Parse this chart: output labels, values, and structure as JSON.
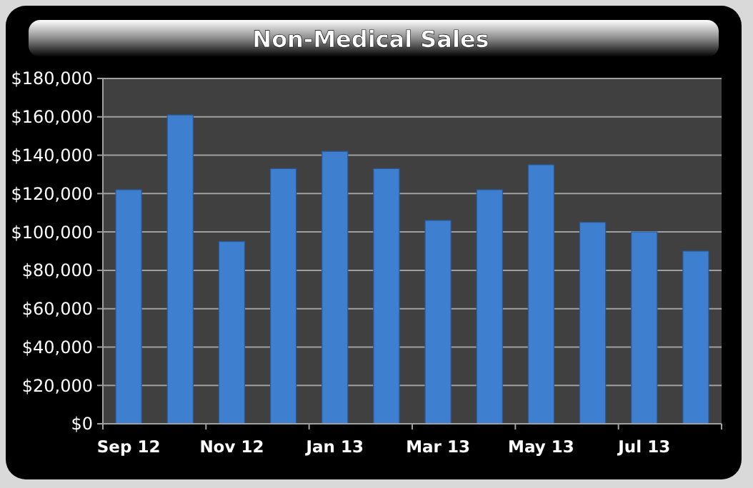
{
  "chart_data": {
    "type": "bar",
    "title": "Non-Medical Sales",
    "categories": [
      "Sep 12",
      null,
      "Nov 12",
      null,
      "Jan 13",
      null,
      "Mar 13",
      null,
      "May 13",
      null,
      "Jul 13",
      null
    ],
    "values": [
      122000,
      161000,
      95000,
      133000,
      142000,
      133000,
      106000,
      122000,
      135000,
      105000,
      100000,
      90000
    ],
    "color": "#3f7fd0",
    "ylim": [
      0,
      180000
    ],
    "yticks": [
      {
        "value": 0,
        "label": "$0"
      },
      {
        "value": 20000,
        "label": "$20,000"
      },
      {
        "value": 40000,
        "label": "$40,000"
      },
      {
        "value": 60000,
        "label": "$60,000"
      },
      {
        "value": 80000,
        "label": "$80,000"
      },
      {
        "value": 100000,
        "label": "$100,000"
      },
      {
        "value": 120000,
        "label": "$120,000"
      },
      {
        "value": 140000,
        "label": "$140,000"
      },
      {
        "value": 160000,
        "label": "$160,000"
      },
      {
        "value": 180000,
        "label": "$180,000"
      }
    ],
    "grid": "y"
  }
}
